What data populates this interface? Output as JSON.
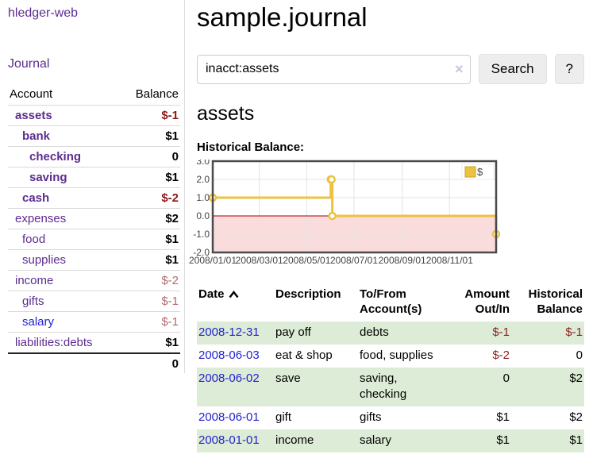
{
  "app": {
    "brand": "hledger-web"
  },
  "sidebar": {
    "nav_journal": "Journal",
    "accounts_table": {
      "headers": {
        "account": "Account",
        "balance": "Balance"
      },
      "rows": [
        {
          "name": "assets",
          "balance": "$-1",
          "indent": 1,
          "bold": true,
          "name_style": "purple",
          "balance_style": "neg-strong"
        },
        {
          "name": "bank",
          "balance": "$1",
          "indent": 2,
          "bold": true,
          "name_style": "purple",
          "balance_style": "pos"
        },
        {
          "name": "checking",
          "balance": "0",
          "indent": 3,
          "bold": true,
          "name_style": "purple",
          "balance_style": "pos"
        },
        {
          "name": "saving",
          "balance": "$1",
          "indent": 3,
          "bold": true,
          "name_style": "purple",
          "balance_style": "pos"
        },
        {
          "name": "cash",
          "balance": "$-2",
          "indent": 2,
          "bold": true,
          "name_style": "purple",
          "balance_style": "neg-strong"
        },
        {
          "name": "expenses",
          "balance": "$2",
          "indent": 1,
          "bold": false,
          "name_style": "purple",
          "balance_style": "pos"
        },
        {
          "name": "food",
          "balance": "$1",
          "indent": 2,
          "bold": false,
          "name_style": "purple",
          "balance_style": "pos"
        },
        {
          "name": "supplies",
          "balance": "$1",
          "indent": 2,
          "bold": false,
          "name_style": "purple",
          "balance_style": "pos"
        },
        {
          "name": "income",
          "balance": "$-2",
          "indent": 1,
          "bold": false,
          "name_style": "purple",
          "balance_style": "neg-soft"
        },
        {
          "name": "gifts",
          "balance": "$-1",
          "indent": 2,
          "bold": false,
          "name_style": "purple",
          "balance_style": "neg-soft"
        },
        {
          "name": "salary",
          "balance": "$-1",
          "indent": 2,
          "bold": false,
          "name_style": "blue",
          "balance_style": "neg-soft"
        },
        {
          "name": "liabilities:debts",
          "balance": "$1",
          "indent": 1,
          "bold": false,
          "name_style": "purple",
          "balance_style": "pos"
        }
      ],
      "total": "0"
    }
  },
  "main": {
    "title": "sample.journal",
    "search": {
      "value": "inacct:assets",
      "clear": "×",
      "search_button": "Search",
      "help_button": "?"
    },
    "account_heading": "assets",
    "chart_title": "Historical Balance:"
  },
  "chart_data": {
    "type": "line",
    "title": "Historical Balance:",
    "series": [
      {
        "name": "$",
        "color": "#edc240",
        "points": [
          {
            "date": "2008-01-01",
            "value": 1
          },
          {
            "date": "2008-06-01",
            "value": 2
          },
          {
            "date": "2008-06-02",
            "value": 2
          },
          {
            "date": "2008-06-03",
            "value": 0
          },
          {
            "date": "2008-12-31",
            "value": -1
          }
        ]
      }
    ],
    "ylim": [
      -2,
      3
    ],
    "y_ticks": [
      3,
      2,
      1,
      0,
      -1,
      -2
    ],
    "x_range": [
      "2008-01-01",
      "2008-12-31"
    ],
    "x_ticks": [
      {
        "date": "2008-01-01",
        "label": "2008/01/01"
      },
      {
        "date": "2008-03-01",
        "label": "2008/03/01"
      },
      {
        "date": "2008-05-01",
        "label": "2008/05/01"
      },
      {
        "date": "2008-07-01",
        "label": "2008/07/01"
      },
      {
        "date": "2008-09-01",
        "label": "2008/09/01"
      },
      {
        "date": "2008-11-01",
        "label": "2008/11/01"
      }
    ],
    "legend": {
      "label": "$",
      "position": "top-right"
    },
    "grid": true,
    "negative_fill": "#fbdcdc",
    "zero_line_color": "#a40000",
    "border_color": "#4a4a4a"
  },
  "register": {
    "columns": [
      {
        "label": "Date",
        "sorted": "asc"
      },
      {
        "label": "Description"
      },
      {
        "label": "To/From Account(s)"
      },
      {
        "label": "Amount Out/In",
        "align": "right"
      },
      {
        "label": "Historical Balance",
        "align": "right"
      }
    ],
    "rows": [
      {
        "date": "2008-12-31",
        "description": "pay off",
        "accounts": "debts",
        "amount": "$-1",
        "amount_neg": true,
        "balance": "$-1",
        "balance_neg": true
      },
      {
        "date": "2008-06-03",
        "description": "eat & shop",
        "accounts": "food, supplies",
        "amount": "$-2",
        "amount_neg": true,
        "balance": "0",
        "balance_neg": false
      },
      {
        "date": "2008-06-02",
        "description": "save",
        "accounts": "saving, checking",
        "amount": "0",
        "amount_neg": false,
        "balance": "$2",
        "balance_neg": false
      },
      {
        "date": "2008-06-01",
        "description": "gift",
        "accounts": "gifts",
        "amount": "$1",
        "amount_neg": false,
        "balance": "$2",
        "balance_neg": false
      },
      {
        "date": "2008-01-01",
        "description": "income",
        "accounts": "salary",
        "amount": "$1",
        "amount_neg": false,
        "balance": "$1",
        "balance_neg": false
      }
    ]
  },
  "colors": {
    "link_purple": "#5b2d90",
    "link_blue": "#2323cc",
    "negative_strong": "#8b1a1a",
    "negative_soft": "#b16b6b",
    "row_stripe_green": "#ddecd6",
    "series_gold": "#edc240"
  }
}
